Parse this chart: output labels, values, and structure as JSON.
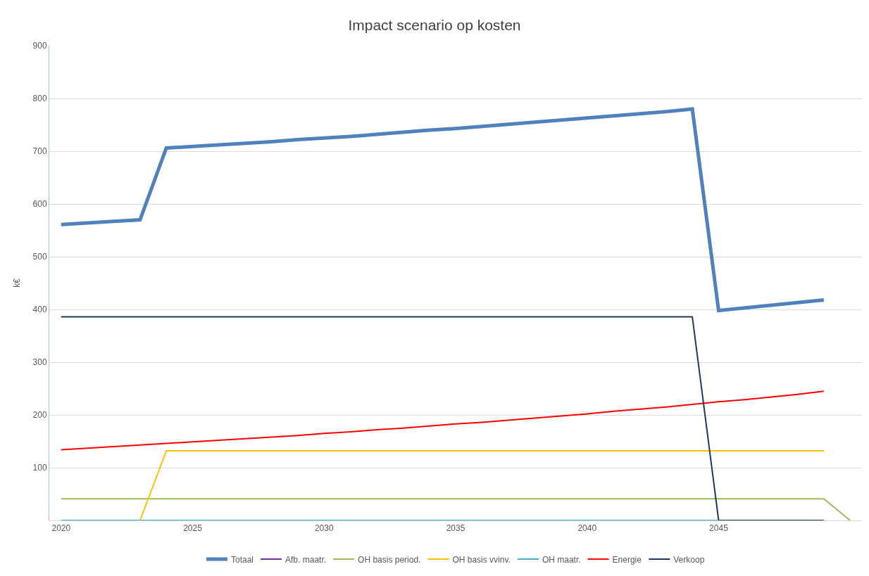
{
  "chart_data": {
    "type": "line",
    "title": "Impact scenario op kosten",
    "ylabel": "k€",
    "x": [
      2020,
      2021,
      2022,
      2023,
      2024,
      2025,
      2026,
      2027,
      2028,
      2029,
      2030,
      2031,
      2032,
      2033,
      2034,
      2035,
      2036,
      2037,
      2038,
      2039,
      2040,
      2041,
      2042,
      2043,
      2044,
      2045,
      2046,
      2047,
      2048,
      2049,
      2050
    ],
    "series": [
      {
        "name": "Totaal",
        "color": "#4f81bd",
        "values": [
          561,
          564,
          567,
          570,
          706,
          709,
          712,
          715,
          718,
          722,
          725,
          728,
          732,
          736,
          740,
          743,
          747,
          751,
          755,
          759,
          763,
          767,
          771,
          775,
          780,
          398,
          403,
          408,
          413,
          418,
          null
        ]
      },
      {
        "name": "Afb. maatr.",
        "color": "#7030a0",
        "values": [
          null,
          null,
          null,
          null,
          null,
          null,
          null,
          null,
          null,
          null,
          null,
          null,
          null,
          null,
          null,
          null,
          null,
          null,
          null,
          null,
          null,
          null,
          null,
          null,
          null,
          null,
          null,
          null,
          null,
          null,
          null
        ]
      },
      {
        "name": "OH basis period.",
        "color": "#9bbb59",
        "values": [
          41,
          41,
          41,
          41,
          41,
          41,
          41,
          41,
          41,
          41,
          41,
          41,
          41,
          41,
          41,
          41,
          41,
          41,
          41,
          41,
          41,
          41,
          41,
          41,
          41,
          41,
          41,
          41,
          41,
          41,
          0
        ]
      },
      {
        "name": "OH basis vvinv.",
        "color": "#ffc000",
        "values": [
          null,
          null,
          0,
          0,
          132,
          132,
          132,
          132,
          132,
          132,
          132,
          132,
          132,
          132,
          132,
          132,
          132,
          132,
          132,
          132,
          132,
          132,
          132,
          132,
          132,
          132,
          132,
          132,
          132,
          132,
          null
        ]
      },
      {
        "name": "OH maatr.",
        "color": "#4bacc6",
        "values": [
          0,
          0,
          0,
          0,
          0,
          0,
          0,
          0,
          0,
          0,
          0,
          0,
          0,
          0,
          0,
          0,
          0,
          0,
          0,
          0,
          0,
          0,
          0,
          0,
          0,
          0,
          0,
          null,
          null,
          null,
          null
        ]
      },
      {
        "name": "Energie",
        "color": "#ff0000",
        "values": [
          134,
          137,
          140,
          143,
          146,
          149,
          152,
          155,
          158,
          161,
          165,
          168,
          172,
          175,
          179,
          183,
          186,
          190,
          194,
          198,
          202,
          207,
          211,
          215,
          220,
          225,
          229,
          234,
          239,
          245,
          null
        ]
      },
      {
        "name": "Verkoop",
        "color": "#1f3864",
        "values": [
          386,
          386,
          386,
          386,
          386,
          386,
          386,
          386,
          386,
          386,
          386,
          386,
          386,
          386,
          386,
          386,
          386,
          386,
          386,
          386,
          386,
          386,
          386,
          386,
          386,
          0,
          0,
          0,
          0,
          0,
          null
        ]
      }
    ],
    "xlim": [
      2019.55,
      2050.45
    ],
    "xticks": [
      2020,
      2025,
      2030,
      2035,
      2040,
      2045
    ],
    "ylim": [
      0,
      900
    ],
    "yticks": [
      100,
      200,
      300,
      400,
      500,
      600,
      700,
      800,
      900
    ],
    "grid": "y",
    "legend": "bottom",
    "marker": "none",
    "line_style": "solid"
  }
}
